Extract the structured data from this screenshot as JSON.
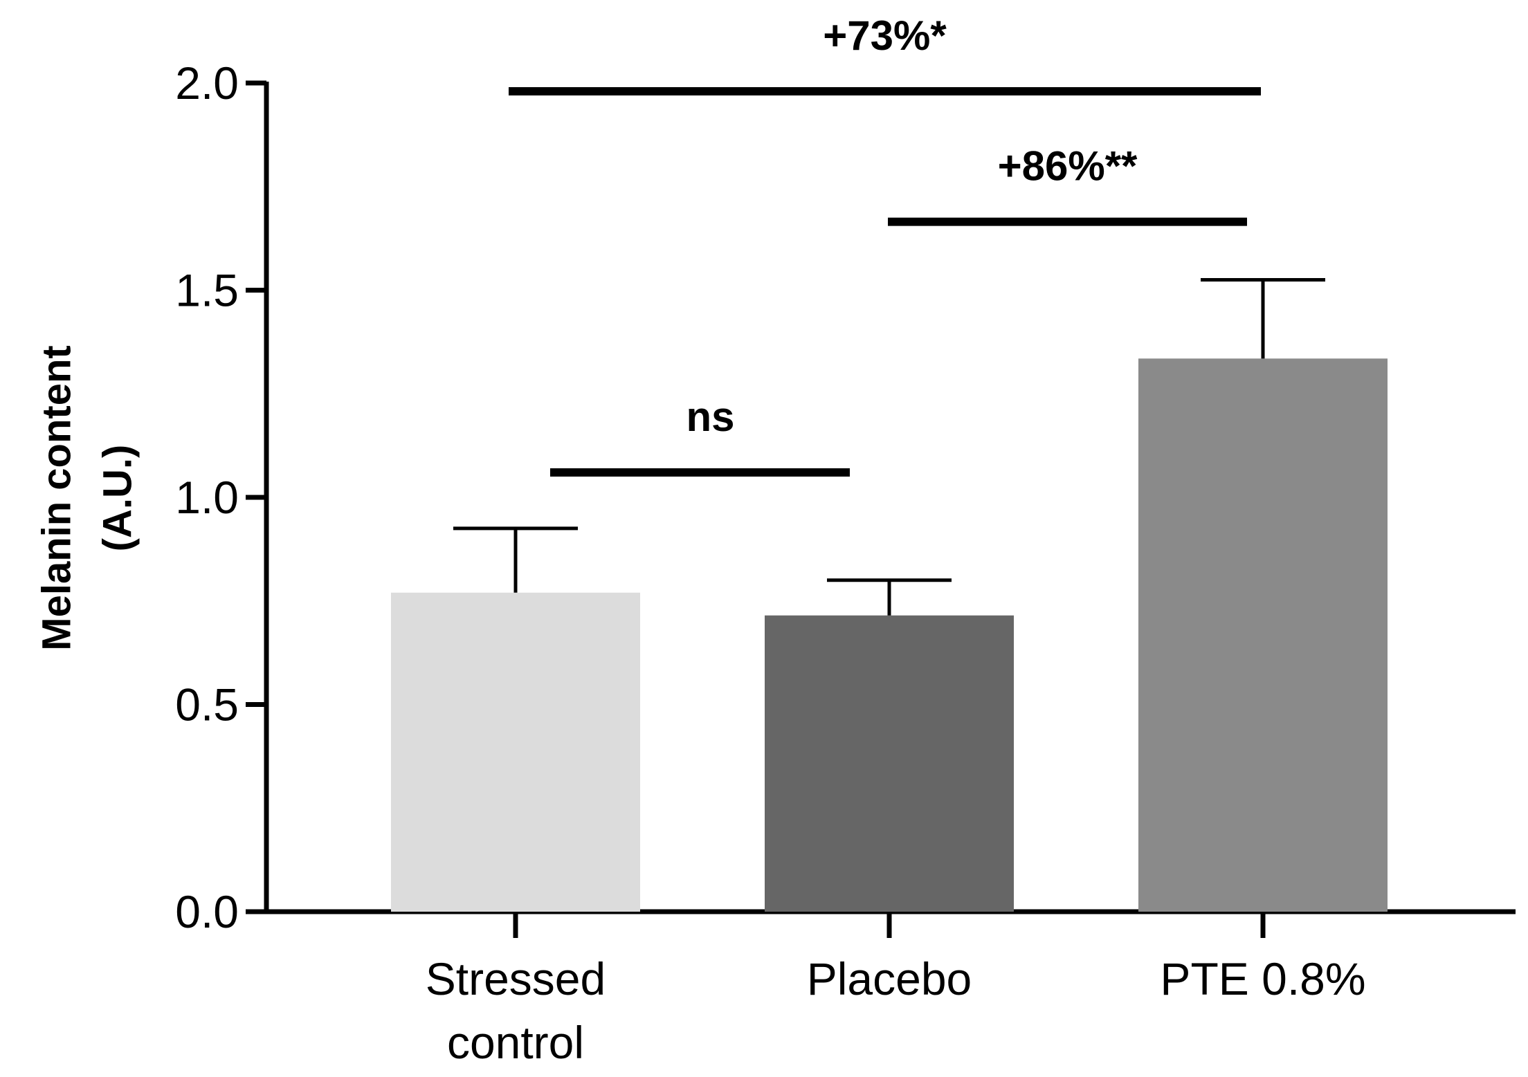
{
  "chart_data": {
    "type": "bar",
    "categories": [
      "Stressed control",
      "Placebo",
      "PTE 0.8%"
    ],
    "category_lines": [
      [
        "Stressed",
        "control"
      ],
      [
        "Placebo"
      ],
      [
        "PTE 0.8%"
      ]
    ],
    "values": [
      0.77,
      0.715,
      1.335
    ],
    "errors": [
      0.155,
      0.085,
      0.19
    ],
    "colors": [
      "#dcdcdc",
      "#666666",
      "#8a8a8a"
    ],
    "ylabel_lines": [
      "Melanin content",
      "(A.U.)"
    ],
    "xlabel": "",
    "ylim": [
      0,
      2.0
    ],
    "yticks": [
      0.0,
      0.5,
      1.0,
      1.5,
      2.0
    ],
    "ytick_labels": [
      "0.0",
      "0.5",
      "1.0",
      "1.5",
      "2.0"
    ],
    "comparisons": [
      {
        "from": 0,
        "to": 1,
        "y": 1.06,
        "label": "ns"
      },
      {
        "from": 1,
        "to": 2,
        "y": 1.665,
        "label": "+86%**"
      },
      {
        "from": 0,
        "to": 2,
        "y": 1.98,
        "label": "+73%*"
      }
    ],
    "axis_color": "#000000"
  }
}
